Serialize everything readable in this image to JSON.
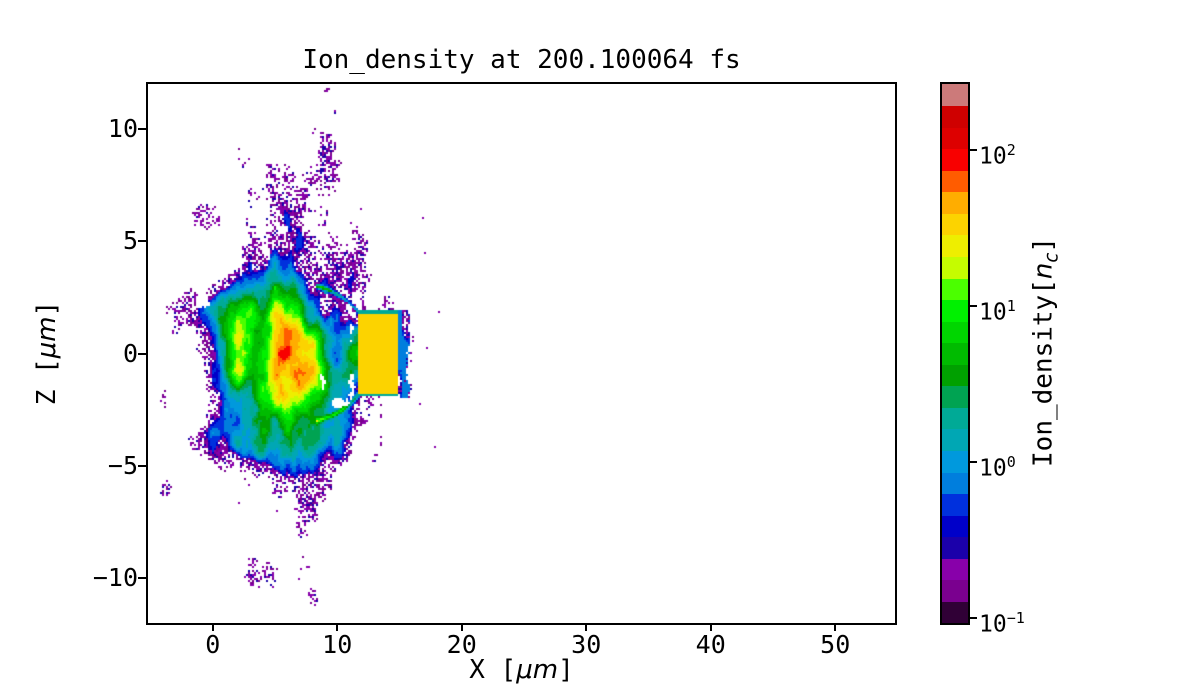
{
  "chart_data": {
    "type": "heatmap",
    "title": "Ion_density at 200.100064 fs",
    "xlabel": "X [μm]",
    "ylabel": "Z [μm]",
    "xlim": [
      -5.2,
      54.8
    ],
    "ylim": [
      -12,
      12
    ],
    "xticks": [
      {
        "v": 0,
        "label": "0"
      },
      {
        "v": 10,
        "label": "10"
      },
      {
        "v": 20,
        "label": "20"
      },
      {
        "v": 30,
        "label": "30"
      },
      {
        "v": 40,
        "label": "40"
      },
      {
        "v": 50,
        "label": "50"
      }
    ],
    "yticks": [
      {
        "v": 10,
        "label": "10"
      },
      {
        "v": 5,
        "label": "5"
      },
      {
        "v": 0,
        "label": "0"
      },
      {
        "v": -5,
        "label": "−5"
      },
      {
        "v": -10,
        "label": "−10"
      }
    ],
    "grid": false,
    "colorbar": {
      "label": "Ion_density[n_c]",
      "scale": "log",
      "colormap": "nipy_spectral",
      "discrete_levels": 25,
      "vmin": 0.093,
      "vmax": 264,
      "log_min": -1.03,
      "log_max": 2.42,
      "ticks": [
        {
          "log": 2,
          "base": "10",
          "exp": "2"
        },
        {
          "log": 1,
          "base": "10",
          "exp": "1"
        },
        {
          "log": 0,
          "base": "10",
          "exp": "0"
        },
        {
          "log": -1,
          "base": "10",
          "exp": "−1"
        }
      ]
    },
    "features": [
      "solid target slab x≈11.7–14.9 μm, |z|≤1.9 μm at ≈30–40 n_c (yellow)",
      "rear-side low-density layer x≈14.9–16.0 μm at ≈0.5–1 n_c (blue) with ragged purple edge",
      "turbulent expanding plasma plume x≈−4.5–12 μm, |z|≤9 μm at ≈0.3–10 n_c (blue/cyan/green)",
      "dense core jet band |z|≲2.5 μm, x≈0–12 μm at ≈20–80 n_c (yellow/orange)",
      "compressed front filaments arcing at x≈9–13 μm at ≈80–200 n_c (red)",
      "low-density speckle halo ≈0.1–0.3 n_c (purple) out to radius ≈10 μm"
    ],
    "render_params": {
      "seed": 7,
      "cell": 2,
      "levels": 25,
      "colormap_stops": [
        [
          0.0,
          "#000000"
        ],
        [
          0.05,
          "#770088"
        ],
        [
          0.1,
          "#8800AA"
        ],
        [
          0.15,
          "#0000AA"
        ],
        [
          0.2,
          "#0000DD"
        ],
        [
          0.25,
          "#0077DD"
        ],
        [
          0.3,
          "#0099DD"
        ],
        [
          0.35,
          "#00AAAA"
        ],
        [
          0.4,
          "#00AA88"
        ],
        [
          0.45,
          "#009900"
        ],
        [
          0.5,
          "#00BB00"
        ],
        [
          0.55,
          "#00DD00"
        ],
        [
          0.6,
          "#00FF00"
        ],
        [
          0.65,
          "#BBFF00"
        ],
        [
          0.7,
          "#EEEE00"
        ],
        [
          0.75,
          "#FFCC00"
        ],
        [
          0.8,
          "#FF9900"
        ],
        [
          0.85,
          "#FF0000"
        ],
        [
          0.9,
          "#DD0000"
        ],
        [
          0.95,
          "#CC0000"
        ],
        [
          1.0,
          "#CCCCCC"
        ]
      ],
      "plume": {
        "cx": 5.0,
        "cz": 0.0,
        "rx": 8.3,
        "rz": 9.3,
        "edge_wobble": 0.16,
        "base": 0.55,
        "falloff": 1.85,
        "noise_amp": 1.25,
        "noise_scale": 0.5
      },
      "core_band": {
        "amp": 1.15,
        "z_sigma": 2.3,
        "x_on": -2,
        "x_full": 2
      },
      "arc": {
        "cx": 6.8,
        "cz": 0.0,
        "rx": 6.1,
        "rz": 3.1,
        "sigma": 0.032,
        "amp": 1.5,
        "x_min": 8.3
      },
      "streaks": {
        "threshold": 0.62,
        "amp": 1.0,
        "scale": 1.1,
        "x_min": 1.5,
        "x_max": 11.5,
        "z_abs_max": 3.0
      },
      "holes": {
        "threshold": -0.52,
        "scale": 0.9,
        "re_min": 0.35
      },
      "speckle": {
        "L_start": -0.4,
        "p_max": 0.9,
        "outer_re": 1.28,
        "purple_lo": -0.85,
        "purple_range": 0.3
      },
      "slab": {
        "x0": 11.7,
        "x1": 14.92,
        "z": 1.92,
        "v": 35,
        "edge_z": 1.8,
        "edge_v": 2.2
      },
      "strip": {
        "x0": 14.92,
        "x1_base": 15.75,
        "x1_wobble": 0.35,
        "z": 1.95,
        "v": 0.75,
        "dark_amp": 0.55,
        "frizz": 0.18
      },
      "stray_specks": [
        [
          17.0,
          4.5
        ],
        [
          18.1,
          1.9
        ],
        [
          17.1,
          0.3
        ],
        [
          16.6,
          -2.2
        ],
        [
          17.8,
          -4.1
        ],
        [
          16.8,
          6.1
        ]
      ]
    }
  },
  "labels": {
    "xlabel": {
      "pre": "X [",
      "math": "μm",
      "post": "]"
    },
    "ylabel": {
      "pre": "Z [",
      "math": "μm",
      "post": "]"
    },
    "cbar": {
      "pre": "Ion_density[",
      "math": "n",
      "sub": "c",
      "post": "]"
    }
  },
  "layout_colors": {
    "background": "#ffffff",
    "axes": "#000000"
  }
}
